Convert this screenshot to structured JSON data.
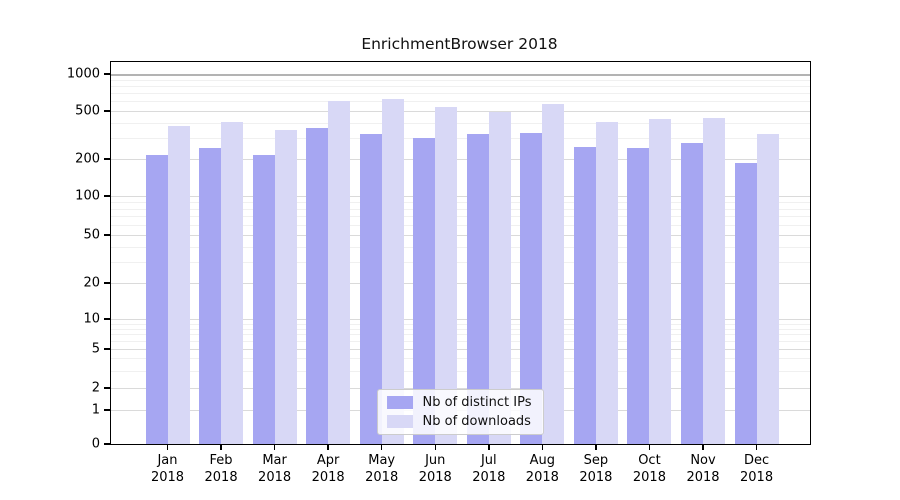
{
  "figure": {
    "background": "#ffffff",
    "frame_color": "#000000",
    "grid_major_color": "#dadada",
    "grid_minor_color": "#f0f0f0"
  },
  "chart_data": {
    "type": "bar",
    "title": "EnrichmentBrowser 2018",
    "categories": [
      "Jan 2018",
      "Feb 2018",
      "Mar 2018",
      "Apr 2018",
      "May 2018",
      "Jun 2018",
      "Jul 2018",
      "Aug 2018",
      "Sep 2018",
      "Oct 2018",
      "Nov 2018",
      "Dec 2018"
    ],
    "series": [
      {
        "name": "Nb of distinct IPs",
        "color": "#a6a6f2",
        "values": [
          215,
          245,
          215,
          365,
          320,
          300,
          320,
          330,
          250,
          245,
          270,
          185
        ]
      },
      {
        "name": "Nb of downloads",
        "color": "#d8d8f6",
        "values": [
          375,
          405,
          350,
          600,
          630,
          540,
          490,
          570,
          405,
          430,
          435,
          325
        ]
      }
    ],
    "xlabel": "",
    "ylabel": "",
    "yscale": "log-like",
    "yticks": [
      0,
      1,
      2,
      5,
      10,
      20,
      50,
      100,
      200,
      500,
      1000
    ],
    "ylim": [
      0,
      1250
    ],
    "grid": true,
    "legend_position": "inside-bottom-center"
  }
}
